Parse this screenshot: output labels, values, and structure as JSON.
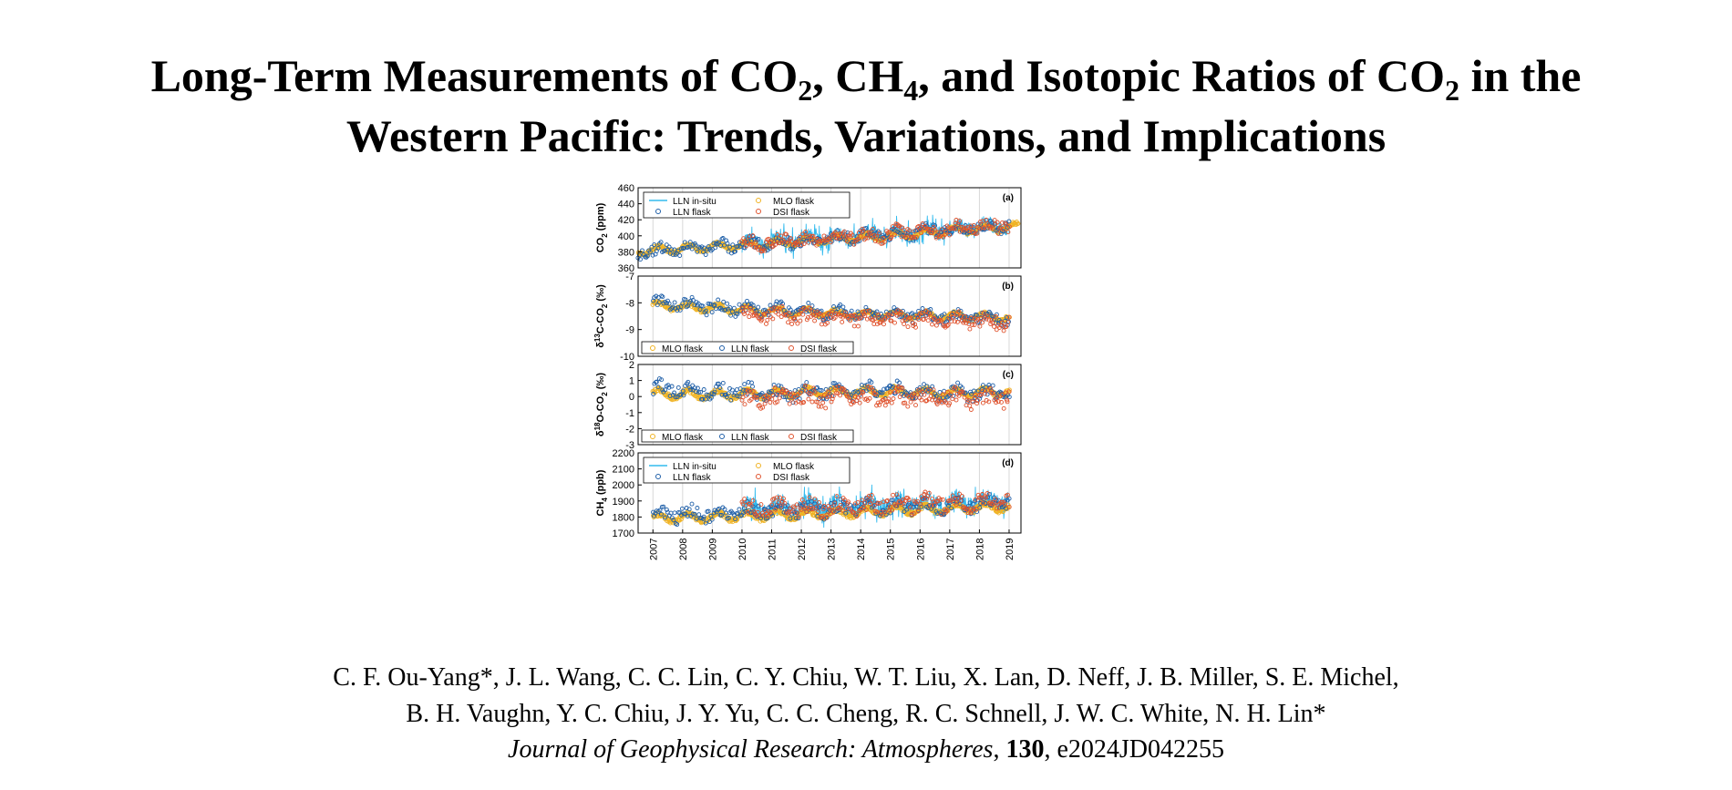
{
  "title": {
    "part1": "Long-Term Measurements of CO",
    "sub1": "2",
    "part2": ", CH",
    "sub2": "4",
    "part3": ", and Isotopic Ratios of CO",
    "sub3": "2",
    "part4": " in the",
    "line2": "Western Pacific: Trends, Variations, and Implications"
  },
  "authors": {
    "line1": "C. F. Ou-Yang*,  J. L. Wang,  C. C. Lin,  C. Y. Chiu,  W. T. Liu,  X. Lan,  D. Neff,  J. B. Miller,  S. E. Michel,",
    "line2": "B. H. Vaughn,  Y. C. Chiu,  J. Y. Yu,  C. C. Cheng,  R. C. Schnell,  J. W. C. White,  N. H. Lin*"
  },
  "citation": {
    "journal": "Journal of Geophysical Research: Atmospheres",
    "sep1": ", ",
    "volume": "130",
    "sep2": ", ",
    "article": "e2024JD042255"
  },
  "colors": {
    "lln_insitu": "#33bbee",
    "lln_flask": "#1f5fa8",
    "mlo_flask": "#f0b323",
    "dsi_flask": "#e0532e"
  },
  "chart_data": [
    {
      "type": "scatter",
      "panel_label": "(a)",
      "ylabel_main": "CO",
      "ylabel_sub": "2",
      "ylabel_tail": " (ppm)",
      "ylim": [
        360,
        460
      ],
      "yticks": [
        "360",
        "380",
        "400",
        "420",
        "440",
        "460"
      ],
      "legend": [
        "LLN in-situ",
        "MLO flask",
        "LLN flask",
        "DSI flask"
      ],
      "legend_position": "top-left",
      "series": [
        {
          "name": "LLN in-situ",
          "x": [
            2010.0,
            2011.0,
            2012.0,
            2013.0,
            2014.0,
            2015.0,
            2016.0,
            2017.0,
            2018.0,
            2019.0
          ],
          "values": [
            388,
            392,
            394,
            396,
            399,
            401,
            404,
            407,
            410,
            412
          ]
        },
        {
          "name": "MLO flask",
          "x": [
            2006.5,
            2007.0,
            2008.0,
            2009.0,
            2010.0,
            2011.0,
            2012.0,
            2013.0,
            2014.0,
            2015.0,
            2016.0,
            2017.0,
            2018.0,
            2019.0,
            2019.3
          ],
          "values": [
            380,
            382,
            384,
            386,
            388,
            390,
            393,
            396,
            398,
            400,
            403,
            406,
            408,
            411,
            412
          ]
        },
        {
          "name": "LLN flask",
          "x": [
            2006.5,
            2007.0,
            2008.0,
            2009.0,
            2010.0,
            2011.0,
            2012.0,
            2013.0,
            2014.0,
            2015.0,
            2016.0,
            2017.0,
            2018.0,
            2019.0
          ],
          "values": [
            378,
            381,
            384,
            387,
            389,
            392,
            394,
            397,
            400,
            402,
            405,
            408,
            410,
            413
          ]
        },
        {
          "name": "DSI flask",
          "x": [
            2010.0,
            2011.0,
            2012.0,
            2013.0,
            2014.0,
            2015.0,
            2016.0,
            2017.0,
            2018.0,
            2019.0
          ],
          "values": [
            390,
            393,
            395,
            397,
            400,
            403,
            405,
            408,
            411,
            413
          ]
        }
      ]
    },
    {
      "type": "scatter",
      "panel_label": "(b)",
      "ylabel_main": "C-CO",
      "ylabel_prefix": "δ",
      "ylabel_sup": "13",
      "ylabel_sub": "2",
      "ylabel_tail": " (‰)",
      "ylim": [
        -10,
        -7
      ],
      "yticks": [
        "-10",
        "-9",
        "-8",
        "-7"
      ],
      "legend": [
        "MLO flask",
        "LLN flask",
        "DSI flask"
      ],
      "legend_position": "bottom-left",
      "series": [
        {
          "name": "MLO flask",
          "x": [
            2007,
            2009,
            2011,
            2013,
            2015,
            2017,
            2019
          ],
          "values": [
            -8.1,
            -8.2,
            -8.3,
            -8.4,
            -8.45,
            -8.5,
            -8.55
          ]
        },
        {
          "name": "LLN flask",
          "x": [
            2007,
            2009,
            2011,
            2013,
            2015,
            2017,
            2019
          ],
          "values": [
            -8.0,
            -8.15,
            -8.25,
            -8.35,
            -8.45,
            -8.5,
            -8.6
          ]
        },
        {
          "name": "DSI flask",
          "x": [
            2010,
            2012,
            2014,
            2016,
            2018,
            2019
          ],
          "values": [
            -8.4,
            -8.5,
            -8.6,
            -8.65,
            -8.7,
            -8.7
          ]
        }
      ]
    },
    {
      "type": "scatter",
      "panel_label": "(c)",
      "ylabel_main": "O-CO",
      "ylabel_prefix": "δ",
      "ylabel_sup": "18",
      "ylabel_sub": "2",
      "ylabel_tail": " (‰)",
      "ylim": [
        -3,
        2
      ],
      "yticks": [
        "-3",
        "-2",
        "-1",
        "0",
        "1",
        "2"
      ],
      "legend": [
        "MLO flask",
        "LLN flask",
        "DSI flask"
      ],
      "legend_position": "bottom-left",
      "series": [
        {
          "name": "MLO flask",
          "x": [
            2007,
            2009,
            2011,
            2013,
            2015,
            2017,
            2019
          ],
          "values": [
            0.2,
            0.1,
            0.2,
            0.3,
            0.3,
            0.2,
            0.3
          ]
        },
        {
          "name": "LLN flask",
          "x": [
            2007,
            2009,
            2011,
            2013,
            2015,
            2017,
            2019
          ],
          "values": [
            0.5,
            0.3,
            0.2,
            0.3,
            0.4,
            0.2,
            0.3
          ]
        },
        {
          "name": "DSI flask",
          "x": [
            2010,
            2012,
            2014,
            2016,
            2018,
            2019
          ],
          "values": [
            -0.2,
            0.0,
            -0.1,
            0.0,
            -0.2,
            0.0
          ]
        }
      ]
    },
    {
      "type": "scatter",
      "panel_label": "(d)",
      "ylabel_main": "CH",
      "ylabel_sub": "4",
      "ylabel_tail": " (ppb)",
      "ylim": [
        1700,
        2200
      ],
      "yticks": [
        "1700",
        "1800",
        "1900",
        "2000",
        "2100",
        "2200"
      ],
      "legend": [
        "LLN in-situ",
        "MLO flask",
        "LLN flask",
        "DSI flask"
      ],
      "legend_position": "top-left",
      "xticks": [
        "2007",
        "2008",
        "2009",
        "2010",
        "2011",
        "2012",
        "2013",
        "2014",
        "2015",
        "2016",
        "2017",
        "2018",
        "2019"
      ],
      "xlim": [
        2006.5,
        2019.4
      ],
      "series": [
        {
          "name": "LLN in-situ",
          "x": [
            2010,
            2011,
            2012,
            2013,
            2014,
            2015,
            2016,
            2017,
            2018,
            2019
          ],
          "values": [
            1840,
            1850,
            1855,
            1860,
            1865,
            1870,
            1875,
            1880,
            1885,
            1895
          ]
        },
        {
          "name": "MLO flask",
          "x": [
            2007,
            2009,
            2011,
            2013,
            2015,
            2017,
            2019
          ],
          "values": [
            1790,
            1800,
            1810,
            1820,
            1840,
            1850,
            1865
          ]
        },
        {
          "name": "LLN flask",
          "x": [
            2007,
            2009,
            2011,
            2013,
            2015,
            2017,
            2019
          ],
          "values": [
            1810,
            1825,
            1840,
            1850,
            1865,
            1875,
            1890
          ]
        },
        {
          "name": "DSI flask",
          "x": [
            2010,
            2012,
            2014,
            2016,
            2018,
            2019
          ],
          "values": [
            1850,
            1860,
            1870,
            1885,
            1895,
            1900
          ]
        }
      ]
    }
  ]
}
